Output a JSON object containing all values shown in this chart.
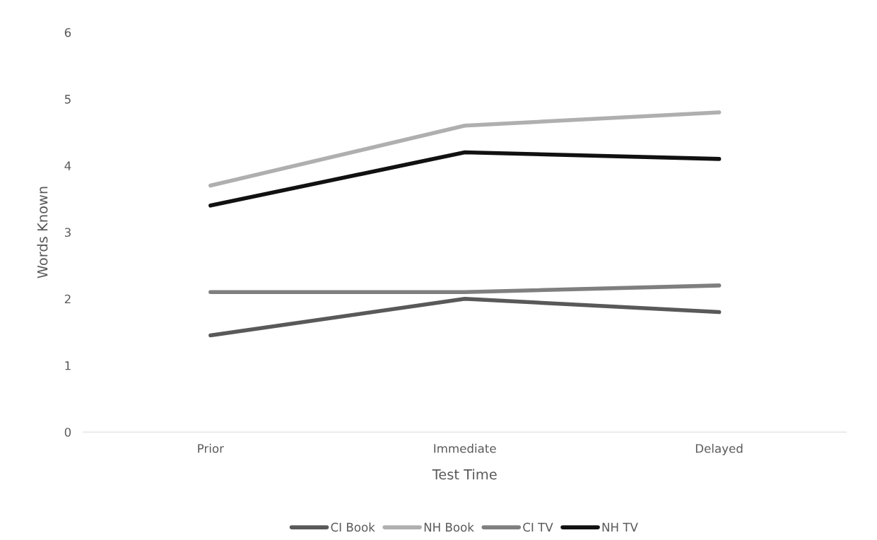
{
  "chart_data": {
    "type": "line",
    "xlabel": "Test Time",
    "ylabel": "Words Known",
    "categories": [
      "Prior",
      "Immediate",
      "Delayed"
    ],
    "series": [
      {
        "name": "CI Book",
        "color": "#595959",
        "values": [
          1.45,
          2.0,
          1.8
        ]
      },
      {
        "name": "NH Book",
        "color": "#afafaf",
        "values": [
          3.7,
          4.6,
          4.8
        ]
      },
      {
        "name": "CI TV",
        "color": "#7f7f7f",
        "values": [
          2.1,
          2.1,
          2.2
        ]
      },
      {
        "name": "NH TV",
        "color": "#111111",
        "values": [
          3.4,
          4.2,
          4.1
        ]
      }
    ],
    "ylim": [
      0,
      6
    ],
    "yticks": [
      0,
      1,
      2,
      3,
      4,
      5,
      6
    ],
    "grid": false,
    "legend": "bottom",
    "marker": "none",
    "line_style": "solid"
  }
}
